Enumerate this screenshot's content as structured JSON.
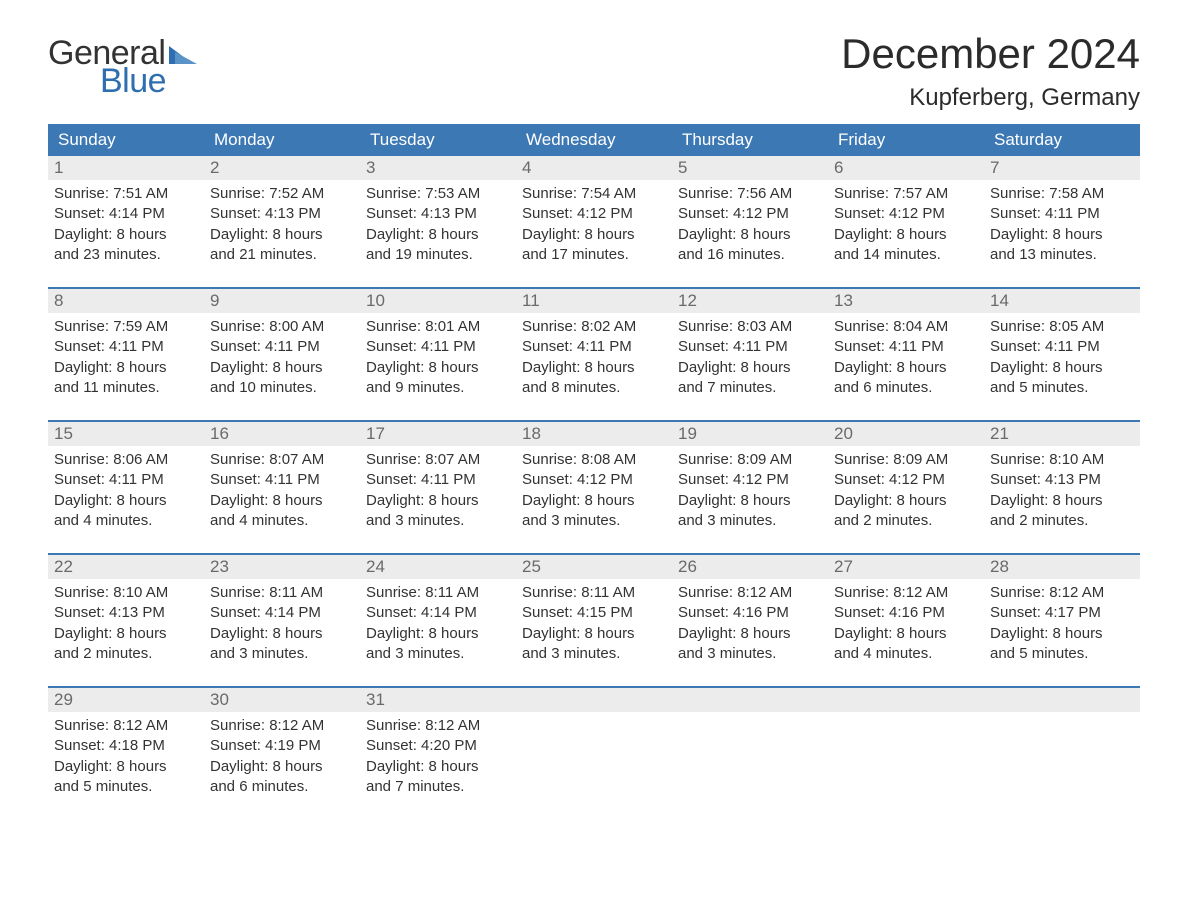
{
  "logo": {
    "text_general": "General",
    "text_blue": "Blue",
    "triangle_color": "#2f6fb0"
  },
  "title": "December 2024",
  "location": "Kupferberg, Germany",
  "colors": {
    "header_bg": "#3c78b4",
    "header_text": "#ffffff",
    "daynum_bg": "#ececec",
    "daynum_text": "#6a6a6a",
    "border": "#3c78b4",
    "body_text": "#333333"
  },
  "fonts": {
    "title_size_pt": 32,
    "location_size_pt": 18,
    "weekday_size_pt": 13,
    "body_size_pt": 11
  },
  "weekdays": [
    "Sunday",
    "Monday",
    "Tuesday",
    "Wednesday",
    "Thursday",
    "Friday",
    "Saturday"
  ],
  "labels": {
    "sunrise": "Sunrise:",
    "sunset": "Sunset:",
    "daylight": "Daylight:"
  },
  "weeks": [
    [
      {
        "n": "1",
        "sr": "7:51 AM",
        "ss": "4:14 PM",
        "dl1": "8 hours",
        "dl2": "and 23 minutes."
      },
      {
        "n": "2",
        "sr": "7:52 AM",
        "ss": "4:13 PM",
        "dl1": "8 hours",
        "dl2": "and 21 minutes."
      },
      {
        "n": "3",
        "sr": "7:53 AM",
        "ss": "4:13 PM",
        "dl1": "8 hours",
        "dl2": "and 19 minutes."
      },
      {
        "n": "4",
        "sr": "7:54 AM",
        "ss": "4:12 PM",
        "dl1": "8 hours",
        "dl2": "and 17 minutes."
      },
      {
        "n": "5",
        "sr": "7:56 AM",
        "ss": "4:12 PM",
        "dl1": "8 hours",
        "dl2": "and 16 minutes."
      },
      {
        "n": "6",
        "sr": "7:57 AM",
        "ss": "4:12 PM",
        "dl1": "8 hours",
        "dl2": "and 14 minutes."
      },
      {
        "n": "7",
        "sr": "7:58 AM",
        "ss": "4:11 PM",
        "dl1": "8 hours",
        "dl2": "and 13 minutes."
      }
    ],
    [
      {
        "n": "8",
        "sr": "7:59 AM",
        "ss": "4:11 PM",
        "dl1": "8 hours",
        "dl2": "and 11 minutes."
      },
      {
        "n": "9",
        "sr": "8:00 AM",
        "ss": "4:11 PM",
        "dl1": "8 hours",
        "dl2": "and 10 minutes."
      },
      {
        "n": "10",
        "sr": "8:01 AM",
        "ss": "4:11 PM",
        "dl1": "8 hours",
        "dl2": "and 9 minutes."
      },
      {
        "n": "11",
        "sr": "8:02 AM",
        "ss": "4:11 PM",
        "dl1": "8 hours",
        "dl2": "and 8 minutes."
      },
      {
        "n": "12",
        "sr": "8:03 AM",
        "ss": "4:11 PM",
        "dl1": "8 hours",
        "dl2": "and 7 minutes."
      },
      {
        "n": "13",
        "sr": "8:04 AM",
        "ss": "4:11 PM",
        "dl1": "8 hours",
        "dl2": "and 6 minutes."
      },
      {
        "n": "14",
        "sr": "8:05 AM",
        "ss": "4:11 PM",
        "dl1": "8 hours",
        "dl2": "and 5 minutes."
      }
    ],
    [
      {
        "n": "15",
        "sr": "8:06 AM",
        "ss": "4:11 PM",
        "dl1": "8 hours",
        "dl2": "and 4 minutes."
      },
      {
        "n": "16",
        "sr": "8:07 AM",
        "ss": "4:11 PM",
        "dl1": "8 hours",
        "dl2": "and 4 minutes."
      },
      {
        "n": "17",
        "sr": "8:07 AM",
        "ss": "4:11 PM",
        "dl1": "8 hours",
        "dl2": "and 3 minutes."
      },
      {
        "n": "18",
        "sr": "8:08 AM",
        "ss": "4:12 PM",
        "dl1": "8 hours",
        "dl2": "and 3 minutes."
      },
      {
        "n": "19",
        "sr": "8:09 AM",
        "ss": "4:12 PM",
        "dl1": "8 hours",
        "dl2": "and 3 minutes."
      },
      {
        "n": "20",
        "sr": "8:09 AM",
        "ss": "4:12 PM",
        "dl1": "8 hours",
        "dl2": "and 2 minutes."
      },
      {
        "n": "21",
        "sr": "8:10 AM",
        "ss": "4:13 PM",
        "dl1": "8 hours",
        "dl2": "and 2 minutes."
      }
    ],
    [
      {
        "n": "22",
        "sr": "8:10 AM",
        "ss": "4:13 PM",
        "dl1": "8 hours",
        "dl2": "and 2 minutes."
      },
      {
        "n": "23",
        "sr": "8:11 AM",
        "ss": "4:14 PM",
        "dl1": "8 hours",
        "dl2": "and 3 minutes."
      },
      {
        "n": "24",
        "sr": "8:11 AM",
        "ss": "4:14 PM",
        "dl1": "8 hours",
        "dl2": "and 3 minutes."
      },
      {
        "n": "25",
        "sr": "8:11 AM",
        "ss": "4:15 PM",
        "dl1": "8 hours",
        "dl2": "and 3 minutes."
      },
      {
        "n": "26",
        "sr": "8:12 AM",
        "ss": "4:16 PM",
        "dl1": "8 hours",
        "dl2": "and 3 minutes."
      },
      {
        "n": "27",
        "sr": "8:12 AM",
        "ss": "4:16 PM",
        "dl1": "8 hours",
        "dl2": "and 4 minutes."
      },
      {
        "n": "28",
        "sr": "8:12 AM",
        "ss": "4:17 PM",
        "dl1": "8 hours",
        "dl2": "and 5 minutes."
      }
    ],
    [
      {
        "n": "29",
        "sr": "8:12 AM",
        "ss": "4:18 PM",
        "dl1": "8 hours",
        "dl2": "and 5 minutes."
      },
      {
        "n": "30",
        "sr": "8:12 AM",
        "ss": "4:19 PM",
        "dl1": "8 hours",
        "dl2": "and 6 minutes."
      },
      {
        "n": "31",
        "sr": "8:12 AM",
        "ss": "4:20 PM",
        "dl1": "8 hours",
        "dl2": "and 7 minutes."
      },
      null,
      null,
      null,
      null
    ]
  ]
}
